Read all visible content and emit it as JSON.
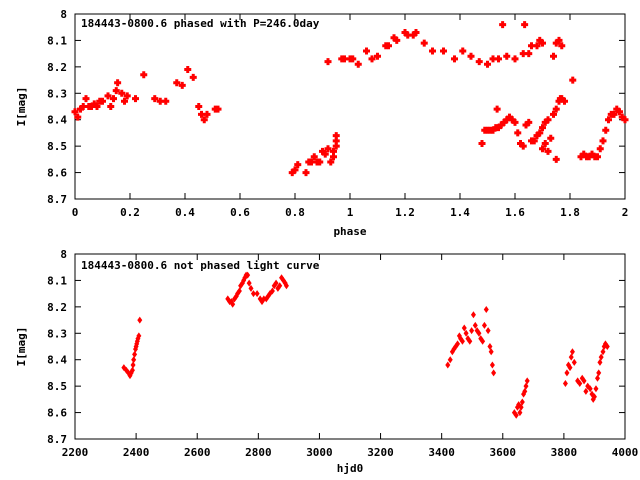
{
  "colors": {
    "points": "#ff0000",
    "axes": "#000000",
    "background": "#ffffff"
  },
  "chart_data": [
    {
      "type": "scatter",
      "title": "184443-0800.6 phased with P=246.0day",
      "xlabel": "phase",
      "ylabel": "I[mag]",
      "xlim": [
        0,
        2
      ],
      "ylim": [
        8.7,
        8.0
      ],
      "y_inverted": true,
      "xticks": [
        0,
        0.2,
        0.4,
        0.6,
        0.8,
        1,
        1.2,
        1.4,
        1.6,
        1.8,
        2
      ],
      "xtick_labels": [
        "0",
        "0.2",
        "0.4",
        "0.6",
        "0.8",
        "1",
        "1.2",
        "1.4",
        "1.6",
        "1.8",
        "2"
      ],
      "yticks": [
        8,
        8.1,
        8.2,
        8.3,
        8.4,
        8.5,
        8.6,
        8.7
      ],
      "ytick_labels": [
        "8",
        "8.1",
        "8.2",
        "8.3",
        "8.4",
        "8.5",
        "8.6",
        "8.7"
      ],
      "grid": false,
      "marker": "filled-plus",
      "series": [
        {
          "points": [
            [
              0.0,
              8.37
            ],
            [
              0.01,
              8.39
            ],
            [
              0.02,
              8.36
            ],
            [
              0.03,
              8.35
            ],
            [
              0.04,
              8.32
            ],
            [
              0.05,
              8.35
            ],
            [
              0.06,
              8.35
            ],
            [
              0.07,
              8.34
            ],
            [
              0.08,
              8.35
            ],
            [
              0.09,
              8.33
            ],
            [
              0.1,
              8.33
            ],
            [
              0.12,
              8.31
            ],
            [
              0.13,
              8.35
            ],
            [
              0.14,
              8.32
            ],
            [
              0.15,
              8.29
            ],
            [
              0.155,
              8.26
            ],
            [
              0.17,
              8.3
            ],
            [
              0.18,
              8.33
            ],
            [
              0.19,
              8.31
            ],
            [
              0.22,
              8.32
            ],
            [
              0.25,
              8.23
            ],
            [
              0.29,
              8.32
            ],
            [
              0.31,
              8.33
            ],
            [
              0.33,
              8.33
            ],
            [
              0.37,
              8.26
            ],
            [
              0.39,
              8.27
            ],
            [
              0.41,
              8.21
            ],
            [
              0.43,
              8.24
            ],
            [
              0.45,
              8.35
            ],
            [
              0.46,
              8.38
            ],
            [
              0.47,
              8.4
            ],
            [
              0.48,
              8.38
            ],
            [
              0.51,
              8.36
            ],
            [
              0.52,
              8.36
            ],
            [
              0.79,
              8.6
            ],
            [
              0.8,
              8.59
            ],
            [
              0.81,
              8.57
            ],
            [
              0.84,
              8.6
            ],
            [
              0.85,
              8.56
            ],
            [
              0.86,
              8.56
            ],
            [
              0.87,
              8.54
            ],
            [
              0.88,
              8.56
            ],
            [
              0.89,
              8.56
            ],
            [
              0.9,
              8.52
            ],
            [
              0.91,
              8.53
            ],
            [
              0.92,
              8.51
            ],
            [
              0.92,
              8.18
            ],
            [
              0.93,
              8.56
            ],
            [
              0.94,
              8.54
            ],
            [
              0.94,
              8.52
            ],
            [
              0.95,
              8.5
            ],
            [
              0.95,
              8.48
            ],
            [
              0.95,
              8.46
            ],
            [
              0.97,
              8.17
            ],
            [
              0.98,
              8.17
            ],
            [
              1.0,
              8.17
            ],
            [
              1.01,
              8.17
            ],
            [
              1.03,
              8.19
            ],
            [
              1.06,
              8.14
            ],
            [
              1.08,
              8.17
            ],
            [
              1.1,
              8.16
            ],
            [
              1.13,
              8.12
            ],
            [
              1.14,
              8.12
            ],
            [
              1.16,
              8.09
            ],
            [
              1.17,
              8.1
            ],
            [
              1.2,
              8.07
            ],
            [
              1.21,
              8.08
            ],
            [
              1.23,
              8.08
            ],
            [
              1.24,
              8.07
            ],
            [
              1.27,
              8.11
            ],
            [
              1.3,
              8.14
            ],
            [
              1.34,
              8.14
            ],
            [
              1.38,
              8.17
            ],
            [
              1.41,
              8.14
            ],
            [
              1.44,
              8.16
            ],
            [
              1.47,
              8.18
            ],
            [
              1.5,
              8.19
            ],
            [
              1.52,
              8.17
            ],
            [
              1.54,
              8.17
            ],
            [
              1.555,
              8.04
            ],
            [
              1.57,
              8.16
            ],
            [
              1.6,
              8.17
            ],
            [
              1.63,
              8.15
            ],
            [
              1.635,
              8.04
            ],
            [
              1.65,
              8.15
            ],
            [
              1.66,
              8.12
            ],
            [
              1.68,
              8.12
            ],
            [
              1.69,
              8.1
            ],
            [
              1.7,
              8.11
            ],
            [
              1.74,
              8.16
            ],
            [
              1.75,
              8.11
            ],
            [
              1.76,
              8.1
            ],
            [
              1.77,
              8.12
            ],
            [
              1.48,
              8.49
            ],
            [
              1.49,
              8.44
            ],
            [
              1.5,
              8.44
            ],
            [
              1.51,
              8.44
            ],
            [
              1.52,
              8.44
            ],
            [
              1.53,
              8.43
            ],
            [
              1.535,
              8.36
            ],
            [
              1.54,
              8.43
            ],
            [
              1.55,
              8.42
            ],
            [
              1.56,
              8.41
            ],
            [
              1.57,
              8.4
            ],
            [
              1.58,
              8.39
            ],
            [
              1.59,
              8.4
            ],
            [
              1.6,
              8.41
            ],
            [
              1.61,
              8.45
            ],
            [
              1.62,
              8.49
            ],
            [
              1.63,
              8.5
            ],
            [
              1.64,
              8.42
            ],
            [
              1.65,
              8.41
            ],
            [
              1.66,
              8.48
            ],
            [
              1.67,
              8.48
            ],
            [
              1.68,
              8.46
            ],
            [
              1.69,
              8.45
            ],
            [
              1.7,
              8.43
            ],
            [
              1.7,
              8.51
            ],
            [
              1.71,
              8.49
            ],
            [
              1.71,
              8.41
            ],
            [
              1.72,
              8.4
            ],
            [
              1.72,
              8.52
            ],
            [
              1.73,
              8.47
            ],
            [
              1.74,
              8.38
            ],
            [
              1.75,
              8.36
            ],
            [
              1.75,
              8.55
            ],
            [
              1.76,
              8.33
            ],
            [
              1.765,
              8.32
            ],
            [
              1.77,
              8.32
            ],
            [
              1.78,
              8.33
            ],
            [
              1.81,
              8.25
            ],
            [
              1.84,
              8.54
            ],
            [
              1.85,
              8.53
            ],
            [
              1.86,
              8.54
            ],
            [
              1.87,
              8.54
            ],
            [
              1.88,
              8.53
            ],
            [
              1.89,
              8.54
            ],
            [
              1.9,
              8.54
            ],
            [
              1.91,
              8.51
            ],
            [
              1.92,
              8.48
            ],
            [
              1.93,
              8.44
            ],
            [
              1.94,
              8.4
            ],
            [
              1.95,
              8.38
            ],
            [
              1.96,
              8.38
            ],
            [
              1.97,
              8.36
            ],
            [
              1.98,
              8.37
            ],
            [
              1.99,
              8.39
            ],
            [
              2.0,
              8.4
            ]
          ]
        }
      ]
    },
    {
      "type": "scatter",
      "title": "184443-0800.6 not phased light curve",
      "xlabel": "hjd0",
      "ylabel": "I[mag]",
      "xlim": [
        2200,
        4000
      ],
      "ylim": [
        8.7,
        8.0
      ],
      "y_inverted": true,
      "xticks": [
        2200,
        2400,
        2600,
        2800,
        3000,
        3200,
        3400,
        3600,
        3800,
        4000
      ],
      "xtick_labels": [
        "2200",
        "2400",
        "2600",
        "2800",
        "3000",
        "3200",
        "3400",
        "3600",
        "3800",
        "4000"
      ],
      "yticks": [
        8,
        8.1,
        8.2,
        8.3,
        8.4,
        8.5,
        8.6,
        8.7
      ],
      "ytick_labels": [
        "8",
        "8.1",
        "8.2",
        "8.3",
        "8.4",
        "8.5",
        "8.6",
        "8.7"
      ],
      "grid": false,
      "marker": "diamond",
      "series": [
        {
          "points": [
            [
              2360,
              8.43
            ],
            [
              2368,
              8.44
            ],
            [
              2375,
              8.45
            ],
            [
              2380,
              8.46
            ],
            [
              2384,
              8.45
            ],
            [
              2388,
              8.44
            ],
            [
              2390,
              8.42
            ],
            [
              2392,
              8.4
            ],
            [
              2395,
              8.38
            ],
            [
              2398,
              8.36
            ],
            [
              2400,
              8.35
            ],
            [
              2402,
              8.34
            ],
            [
              2404,
              8.33
            ],
            [
              2406,
              8.32
            ],
            [
              2409,
              8.31
            ],
            [
              2412,
              8.25
            ],
            [
              2700,
              8.17
            ],
            [
              2706,
              8.18
            ],
            [
              2712,
              8.18
            ],
            [
              2716,
              8.19
            ],
            [
              2722,
              8.17
            ],
            [
              2728,
              8.16
            ],
            [
              2732,
              8.15
            ],
            [
              2738,
              8.14
            ],
            [
              2742,
              8.12
            ],
            [
              2748,
              8.11
            ],
            [
              2752,
              8.1
            ],
            [
              2756,
              8.09
            ],
            [
              2760,
              8.08
            ],
            [
              2765,
              8.08
            ],
            [
              2770,
              8.11
            ],
            [
              2776,
              8.13
            ],
            [
              2784,
              8.15
            ],
            [
              2796,
              8.15
            ],
            [
              2806,
              8.17
            ],
            [
              2812,
              8.18
            ],
            [
              2818,
              8.17
            ],
            [
              2826,
              8.17
            ],
            [
              2832,
              8.16
            ],
            [
              2838,
              8.15
            ],
            [
              2846,
              8.14
            ],
            [
              2852,
              8.12
            ],
            [
              2858,
              8.11
            ],
            [
              2864,
              8.13
            ],
            [
              2870,
              8.12
            ],
            [
              2876,
              8.09
            ],
            [
              2882,
              8.1
            ],
            [
              2888,
              8.11
            ],
            [
              2892,
              8.12
            ],
            [
              3420,
              8.42
            ],
            [
              3428,
              8.4
            ],
            [
              3435,
              8.37
            ],
            [
              3440,
              8.36
            ],
            [
              3446,
              8.35
            ],
            [
              3452,
              8.34
            ],
            [
              3458,
              8.31
            ],
            [
              3462,
              8.32
            ],
            [
              3468,
              8.33
            ],
            [
              3474,
              8.28
            ],
            [
              3480,
              8.3
            ],
            [
              3486,
              8.32
            ],
            [
              3492,
              8.33
            ],
            [
              3498,
              8.29
            ],
            [
              3504,
              8.23
            ],
            [
              3510,
              8.27
            ],
            [
              3516,
              8.29
            ],
            [
              3522,
              8.3
            ],
            [
              3528,
              8.32
            ],
            [
              3534,
              8.33
            ],
            [
              3540,
              8.27
            ],
            [
              3546,
              8.21
            ],
            [
              3552,
              8.29
            ],
            [
              3558,
              8.35
            ],
            [
              3562,
              8.37
            ],
            [
              3566,
              8.42
            ],
            [
              3570,
              8.45
            ],
            [
              3638,
              8.6
            ],
            [
              3644,
              8.61
            ],
            [
              3648,
              8.58
            ],
            [
              3652,
              8.57
            ],
            [
              3656,
              8.6
            ],
            [
              3660,
              8.58
            ],
            [
              3664,
              8.56
            ],
            [
              3668,
              8.53
            ],
            [
              3672,
              8.52
            ],
            [
              3676,
              8.5
            ],
            [
              3680,
              8.48
            ],
            [
              3805,
              8.49
            ],
            [
              3810,
              8.45
            ],
            [
              3815,
              8.42
            ],
            [
              3820,
              8.43
            ],
            [
              3824,
              8.39
            ],
            [
              3828,
              8.37
            ],
            [
              3834,
              8.41
            ],
            [
              3845,
              8.48
            ],
            [
              3852,
              8.49
            ],
            [
              3860,
              8.47
            ],
            [
              3866,
              8.48
            ],
            [
              3872,
              8.52
            ],
            [
              3878,
              8.5
            ],
            [
              3886,
              8.51
            ],
            [
              3892,
              8.53
            ],
            [
              3896,
              8.55
            ],
            [
              3900,
              8.54
            ],
            [
              3905,
              8.51
            ],
            [
              3910,
              8.47
            ],
            [
              3914,
              8.45
            ],
            [
              3918,
              8.41
            ],
            [
              3922,
              8.39
            ],
            [
              3928,
              8.37
            ],
            [
              3932,
              8.35
            ],
            [
              3936,
              8.34
            ],
            [
              3942,
              8.35
            ]
          ]
        }
      ]
    }
  ]
}
